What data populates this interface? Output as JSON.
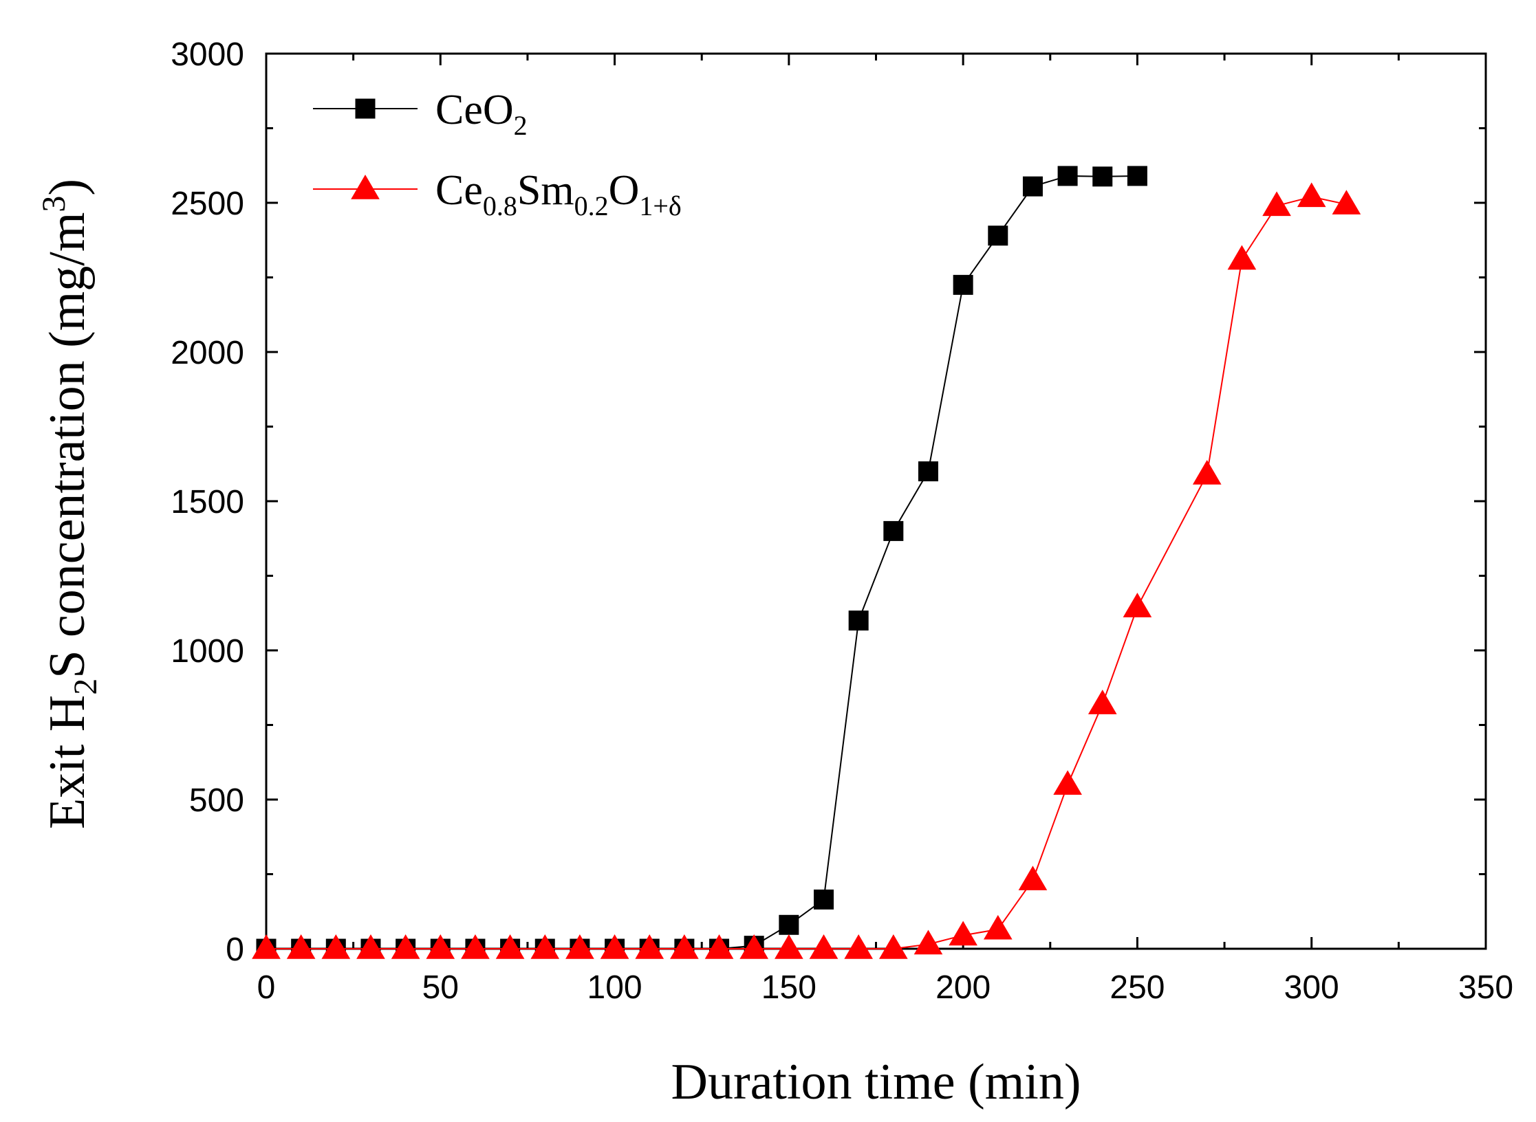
{
  "chart_data": {
    "type": "line",
    "title": "",
    "xlabel": "Duration time (min)",
    "ylabel": {
      "prefix": "Exit H",
      "sub": "2",
      "middle": "S concentration (mg/m",
      "sup": "3",
      "suffix": ")"
    },
    "xlim": [
      0,
      350
    ],
    "ylim": [
      0,
      3000
    ],
    "xticks": [
      0,
      50,
      100,
      150,
      200,
      250,
      300,
      350
    ],
    "yticks": [
      0,
      500,
      1000,
      1500,
      2000,
      2500,
      3000
    ],
    "xtick_labels": [
      "0",
      "50",
      "100",
      "150",
      "200",
      "250",
      "300",
      "350"
    ],
    "ytick_labels": [
      "0",
      "500",
      "1000",
      "1500",
      "2000",
      "2500",
      "3000"
    ],
    "grid": false,
    "legend_position": "top-left",
    "series": [
      {
        "name": "CeO2",
        "legend_parts": [
          {
            "text": "CeO",
            "type": "normal"
          },
          {
            "text": "2",
            "type": "sub"
          }
        ],
        "color": "#000000",
        "marker": "square",
        "x": [
          0,
          10,
          20,
          30,
          40,
          50,
          60,
          70,
          80,
          90,
          100,
          110,
          120,
          130,
          140,
          150,
          160,
          170,
          180,
          190,
          200,
          210,
          220,
          230,
          240,
          250
        ],
        "y": [
          0,
          0,
          0,
          0,
          0,
          0,
          0,
          0,
          0,
          0,
          0,
          0,
          0,
          0,
          10,
          80,
          165,
          1100,
          1400,
          1600,
          2225,
          2390,
          2555,
          2590,
          2588,
          2590
        ]
      },
      {
        "name": "Ce0.8Sm0.2O1+δ",
        "legend_parts": [
          {
            "text": "Ce",
            "type": "normal"
          },
          {
            "text": "0.8",
            "type": "sub"
          },
          {
            "text": "Sm",
            "type": "normal"
          },
          {
            "text": "0.2",
            "type": "sub"
          },
          {
            "text": "O",
            "type": "normal"
          },
          {
            "text": "1+δ",
            "type": "sub"
          }
        ],
        "color": "#ff0000",
        "marker": "triangle",
        "x": [
          0,
          10,
          20,
          30,
          40,
          50,
          60,
          70,
          80,
          90,
          100,
          110,
          120,
          130,
          140,
          150,
          160,
          170,
          180,
          190,
          200,
          210,
          220,
          230,
          240,
          250,
          270,
          280,
          290,
          300,
          310
        ],
        "y": [
          0,
          0,
          0,
          0,
          0,
          0,
          0,
          0,
          0,
          0,
          0,
          0,
          0,
          0,
          0,
          0,
          0,
          0,
          0,
          15,
          45,
          65,
          230,
          550,
          820,
          1145,
          1590,
          2310,
          2490,
          2520,
          2495
        ]
      }
    ]
  }
}
